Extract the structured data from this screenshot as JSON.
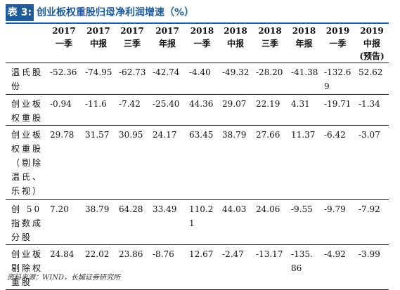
{
  "title": {
    "badge": "表 3:",
    "text": "创业板权重股归母净利润增速（%）"
  },
  "columns": [
    [
      "2017",
      "一季"
    ],
    [
      "2017",
      "中报"
    ],
    [
      "2017",
      "三季"
    ],
    [
      "2017",
      "年报"
    ],
    [
      "2018",
      "一季"
    ],
    [
      "2018",
      "中报"
    ],
    [
      "2018",
      "三季"
    ],
    [
      "2018",
      "年报"
    ],
    [
      "2019",
      "一季"
    ],
    [
      "2019 中报",
      "(预告)"
    ]
  ],
  "rows": [
    {
      "label": "温氏股份",
      "values": [
        "-52.36",
        "-74.95",
        "-62.73",
        "-42.74",
        "-4.40",
        "-49.32",
        "-28.20",
        "-41.38",
        "-132.69",
        "52.62"
      ]
    },
    {
      "label": "创业板权重股",
      "values": [
        "-0.94",
        "-11.6",
        "-7.42",
        "-25.40",
        "44.36",
        "29.07",
        "22.19",
        "4.31",
        "-19.71",
        "-1.34"
      ]
    },
    {
      "label": "创业板权重股（剔除温氏、乐视）",
      "values": [
        "29.78",
        "31.57",
        "30.95",
        "24.17",
        "63.45",
        "38.79",
        "27.66",
        "11.37",
        "-6.42",
        "-3.07"
      ]
    },
    {
      "label": "创 50 指数成分股",
      "values": [
        "7.20",
        "38.79",
        "64.28",
        "33.49",
        "110.21",
        "44.03",
        "24.06",
        "-9.55",
        "-9.79",
        "-7.92"
      ]
    },
    {
      "label": "创业板剔除权重股",
      "values": [
        "24.84",
        "22.02",
        "23.86",
        "-8.76",
        "12.67",
        "-2.47",
        "-13.17",
        "-135.86",
        "-4.92",
        "-3.99"
      ]
    }
  ],
  "source": "资料来源：WIND，长城证券研究所"
}
